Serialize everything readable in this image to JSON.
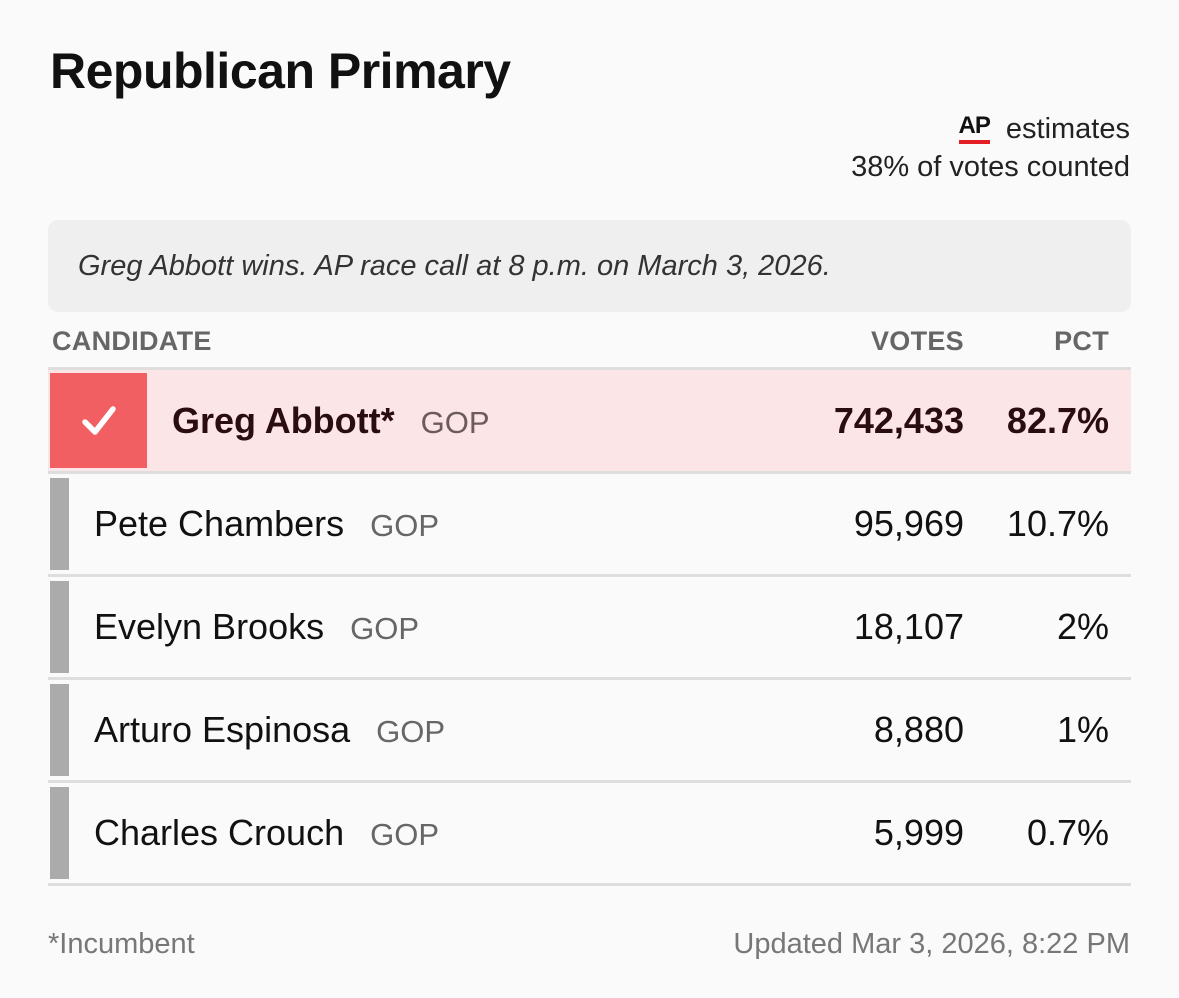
{
  "title": "Republican Primary",
  "source": {
    "logo": "AP",
    "label": "estimates",
    "counted": "38% of votes counted"
  },
  "race_call": "Greg Abbott wins. AP race call at 8 p.m. on March 3, 2026.",
  "table": {
    "headers": {
      "candidate": "CANDIDATE",
      "votes": "VOTES",
      "pct": "PCT"
    },
    "rows": [
      {
        "name": "Greg Abbott*",
        "party": "GOP",
        "votes": "742,433",
        "pct": "82.7%",
        "winner": true
      },
      {
        "name": "Pete Chambers",
        "party": "GOP",
        "votes": "95,969",
        "pct": "10.7%",
        "winner": false
      },
      {
        "name": "Evelyn Brooks",
        "party": "GOP",
        "votes": "18,107",
        "pct": "2%",
        "winner": false
      },
      {
        "name": "Arturo Espinosa",
        "party": "GOP",
        "votes": "8,880",
        "pct": "1%",
        "winner": false
      },
      {
        "name": "Charles Crouch",
        "party": "GOP",
        "votes": "5,999",
        "pct": "0.7%",
        "winner": false
      }
    ]
  },
  "footnote": "*Incumbent",
  "updated": "Updated Mar 3, 2026, 8:22 PM",
  "colors": {
    "winner_accent": "#f15f63",
    "winner_row": "#fbe5e6",
    "loser_bar": "#ababab",
    "ap_underline": "#e31e24"
  },
  "icons": {
    "winner": "checkmark-icon"
  }
}
